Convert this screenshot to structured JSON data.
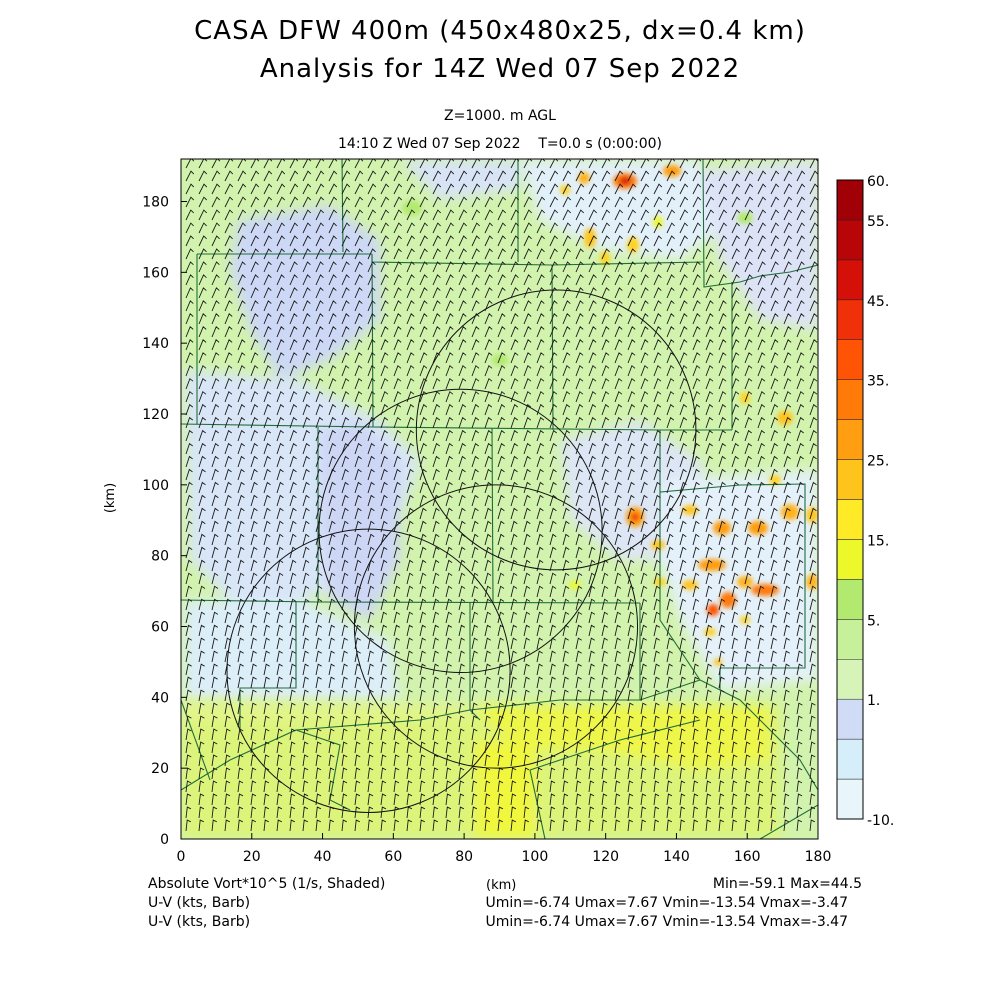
{
  "header": {
    "title_line1": "CASA DFW 400m (450x480x25, dx=0.4 km)",
    "title_line2": "Analysis for 14Z Wed 07 Sep 2022",
    "level": "Z=1000. m AGL",
    "valid_time": "14:10 Z Wed 07 Sep 2022",
    "model_time": "T=0.0 s (0:00:00)"
  },
  "axes": {
    "x_ticks": [
      "0",
      "20",
      "40",
      "60",
      "80",
      "100",
      "120",
      "140",
      "160",
      "180"
    ],
    "y_ticks": [
      "0",
      "20",
      "40",
      "60",
      "80",
      "100",
      "120",
      "140",
      "160",
      "180"
    ],
    "x_label": "(km)",
    "y_label": "(km)",
    "x_range": [
      0,
      180
    ],
    "y_range": [
      0,
      192
    ]
  },
  "colorbar": {
    "labels": [
      "60.",
      "55.",
      "45.",
      "35.",
      "25.",
      "15.",
      "5.",
      "1.",
      "-10."
    ],
    "colors": [
      "#e8f6fc",
      "#d6eef9",
      "#d0dcf6",
      "#d6f4b8",
      "#c6f09a",
      "#b2ea70",
      "#ecf82a",
      "#ffea28",
      "#ffc41c",
      "#ff9e10",
      "#ff7a08",
      "#ff5406",
      "#f03008",
      "#d41008",
      "#b80608",
      "#a00006"
    ]
  },
  "radars": [
    {
      "name": "radar-ring-1",
      "cx_km": 106,
      "cy_km": 115.5,
      "r_km": 39.5
    },
    {
      "name": "radar-ring-2",
      "cx_km": 79,
      "cy_km": 87,
      "r_km": 40
    },
    {
      "name": "radar-ring-3",
      "cx_km": 89,
      "cy_km": 60,
      "r_km": 40
    },
    {
      "name": "radar-ring-4",
      "cx_km": 53,
      "cy_km": 47.5,
      "r_km": 40
    }
  ],
  "footer": {
    "field1": "Absolute Vort*10^5 (1/s, Shaded)",
    "field2": "U-V (kts, Barb)",
    "field3": "U-V (kts, Barb)",
    "xunit": "(km)",
    "minmax": "Min=-59.1 Max=44.5",
    "uv1": "Umin=-6.74 Umax=7.67 Vmin=-13.54 Vmax=-3.47",
    "uv2": "Umin=-6.74 Umax=7.67 Vmin=-13.54 Vmax=-3.47"
  }
}
